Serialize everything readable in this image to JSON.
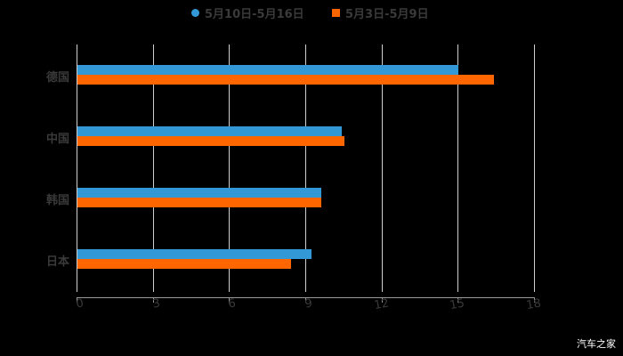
{
  "chart_data": {
    "type": "bar",
    "orientation": "horizontal",
    "title": "",
    "xlabel": "",
    "ylabel": "",
    "categories": [
      "德国",
      "中国",
      "韩国",
      "日本"
    ],
    "series": [
      {
        "name": "5月10日-5月16日",
        "color": "#3399d6",
        "values": [
          15.0,
          10.4,
          9.6,
          9.2
        ]
      },
      {
        "name": "5月3日-5月9日",
        "color": "#ff6600",
        "values": [
          16.4,
          10.5,
          9.6,
          8.4
        ]
      }
    ],
    "xlim": [
      0,
      18
    ],
    "xticks": [
      "0",
      "3",
      "6",
      "9",
      "12",
      "15",
      "18"
    ],
    "grid": true,
    "legend_position": "top"
  },
  "legend": [
    {
      "label": "5月10日-5月16日",
      "color": "#3399d6",
      "shape": "circle"
    },
    {
      "label": "5月3日-5月9日",
      "color": "#ff6600",
      "shape": "square"
    }
  ],
  "watermark": "汽车之家"
}
